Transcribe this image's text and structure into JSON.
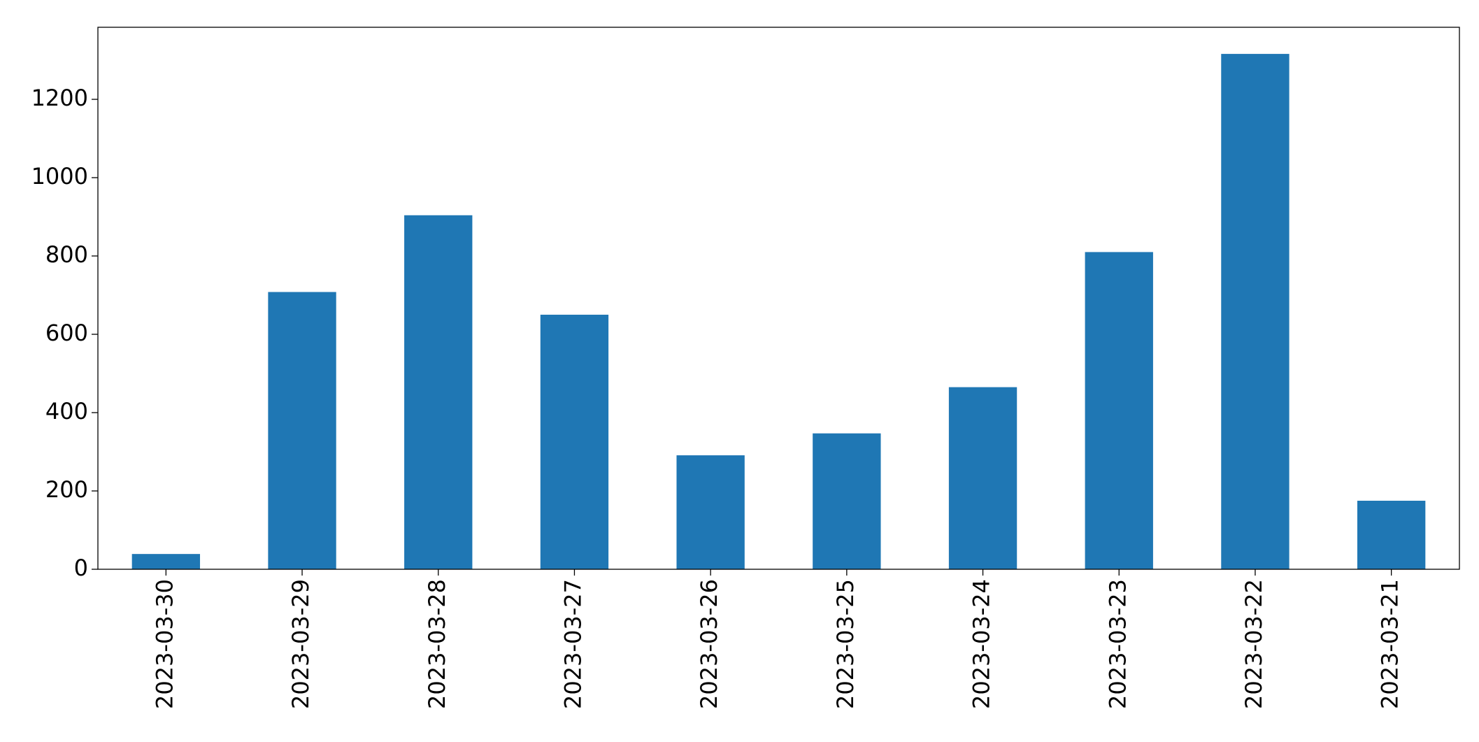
{
  "chart_data": {
    "type": "bar",
    "categories": [
      "2023-03-30",
      "2023-03-29",
      "2023-03-28",
      "2023-03-27",
      "2023-03-26",
      "2023-03-25",
      "2023-03-24",
      "2023-03-23",
      "2023-03-22",
      "2023-03-21"
    ],
    "values": [
      39,
      708,
      904,
      650,
      291,
      347,
      465,
      810,
      1316,
      175
    ],
    "color": "#1f77b4",
    "ylim": [
      0,
      1384
    ],
    "yticks": [
      0,
      200,
      400,
      600,
      800,
      1000,
      1200
    ],
    "grid": false
  }
}
